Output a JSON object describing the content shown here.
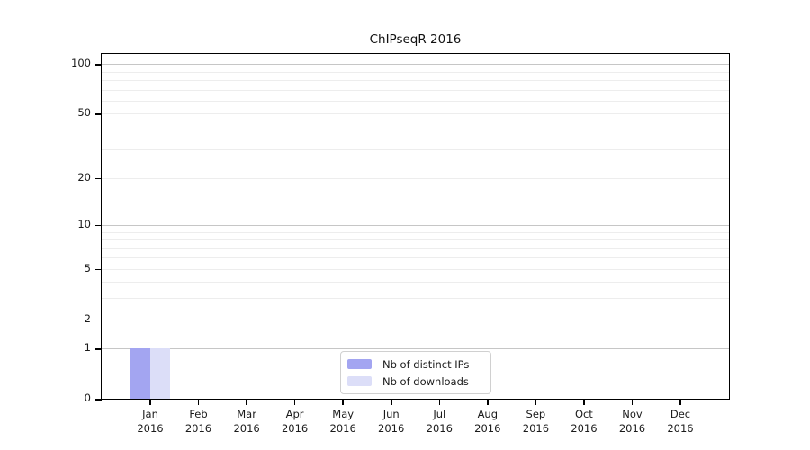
{
  "chart_data": {
    "type": "bar",
    "title": "ChIPseqR 2016",
    "categories": [
      "Jan 2016",
      "Feb 2016",
      "Mar 2016",
      "Apr 2016",
      "May 2016",
      "Jun 2016",
      "Jul 2016",
      "Aug 2016",
      "Sep 2016",
      "Oct 2016",
      "Nov 2016",
      "Dec 2016"
    ],
    "series": [
      {
        "name": "Nb of distinct IPs",
        "color": "#a3a5f1",
        "values": [
          1,
          0,
          0,
          0,
          0,
          0,
          0,
          0,
          0,
          0,
          0,
          0
        ]
      },
      {
        "name": "Nb of downloads",
        "color": "#dcdef8",
        "values": [
          1,
          0,
          0,
          0,
          0,
          0,
          0,
          0,
          0,
          0,
          0,
          0
        ]
      }
    ],
    "xlabel": "",
    "ylabel": "",
    "yscale": "log1p",
    "ylim": [
      0,
      115
    ],
    "yticks": [
      0,
      1,
      2,
      5,
      10,
      20,
      50,
      100
    ],
    "major_gridlines": [
      1,
      10,
      100
    ],
    "minor_gridlines": [
      2,
      3,
      4,
      5,
      6,
      7,
      8,
      9,
      20,
      30,
      40,
      50,
      60,
      70,
      80,
      90
    ],
    "grid": "on",
    "legend_position": "bottom-center"
  },
  "colors": {
    "spine": "#000000",
    "major_grid": "#c6c6c6",
    "minor_grid": "#ededed",
    "text": "#1a1a1a",
    "legend_border": "#d0d0d0",
    "background": "#ffffff"
  }
}
